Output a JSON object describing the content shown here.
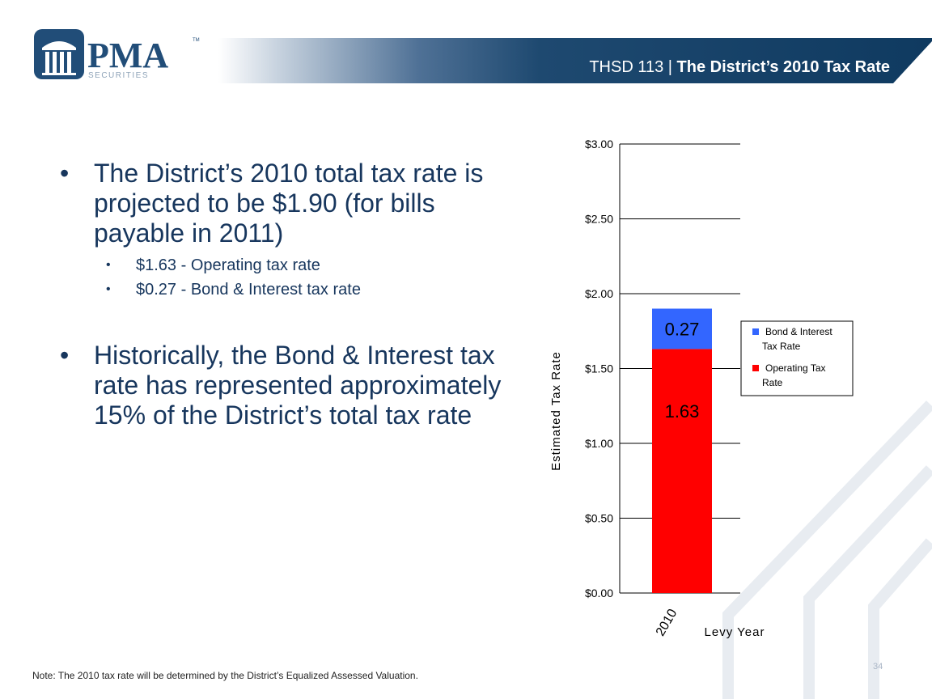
{
  "header": {
    "prefix": "THSD 113 | ",
    "title": "The District’s 2010 Tax Rate"
  },
  "logo": {
    "name": "PMA",
    "trademark": "TM",
    "sub": "SECURITIES"
  },
  "bullets": [
    {
      "text": "The District’s 2010 total tax rate is projected to be $1.90 (for bills payable in 2011)",
      "sub": [
        "$1.63 - Operating tax rate",
        "$0.27 - Bond & Interest tax rate"
      ]
    },
    {
      "text": "Historically, the Bond & Interest tax rate has represented approximately 15% of the District’s total tax rate"
    }
  ],
  "note": "Note: The 2010  tax rate will be determined by the District’s Equalized Assessed Valuation.",
  "page_number": "34",
  "colors": {
    "navy": "#1f4e79",
    "text": "#17365d",
    "operating": "#ff0000",
    "bond": "#3366ff"
  },
  "chart_data": {
    "type": "bar",
    "stacked": true,
    "categories": [
      "2010"
    ],
    "series": [
      {
        "name": "Operating Tax Rate",
        "values": [
          1.63
        ],
        "color": "#ff0000"
      },
      {
        "name": "Bond & Interest Tax Rate",
        "values": [
          0.27
        ],
        "color": "#3366ff"
      }
    ],
    "data_labels": [
      "1.63",
      "0.27"
    ],
    "ylabel": "Estimated Tax Rate",
    "xlabel": "Levy Year",
    "ylim": [
      0,
      3
    ],
    "yticks": [
      "$0.00",
      "$0.50",
      "$1.00",
      "$1.50",
      "$2.00",
      "$2.50",
      "$3.00"
    ],
    "legend": {
      "position": "right",
      "entries": [
        {
          "line1": "Bond & Interest",
          "line2": "Tax Rate",
          "color": "#3366ff"
        },
        {
          "line1": "Operating Tax",
          "line2": "Rate",
          "color": "#ff0000"
        }
      ]
    },
    "grid": true
  }
}
